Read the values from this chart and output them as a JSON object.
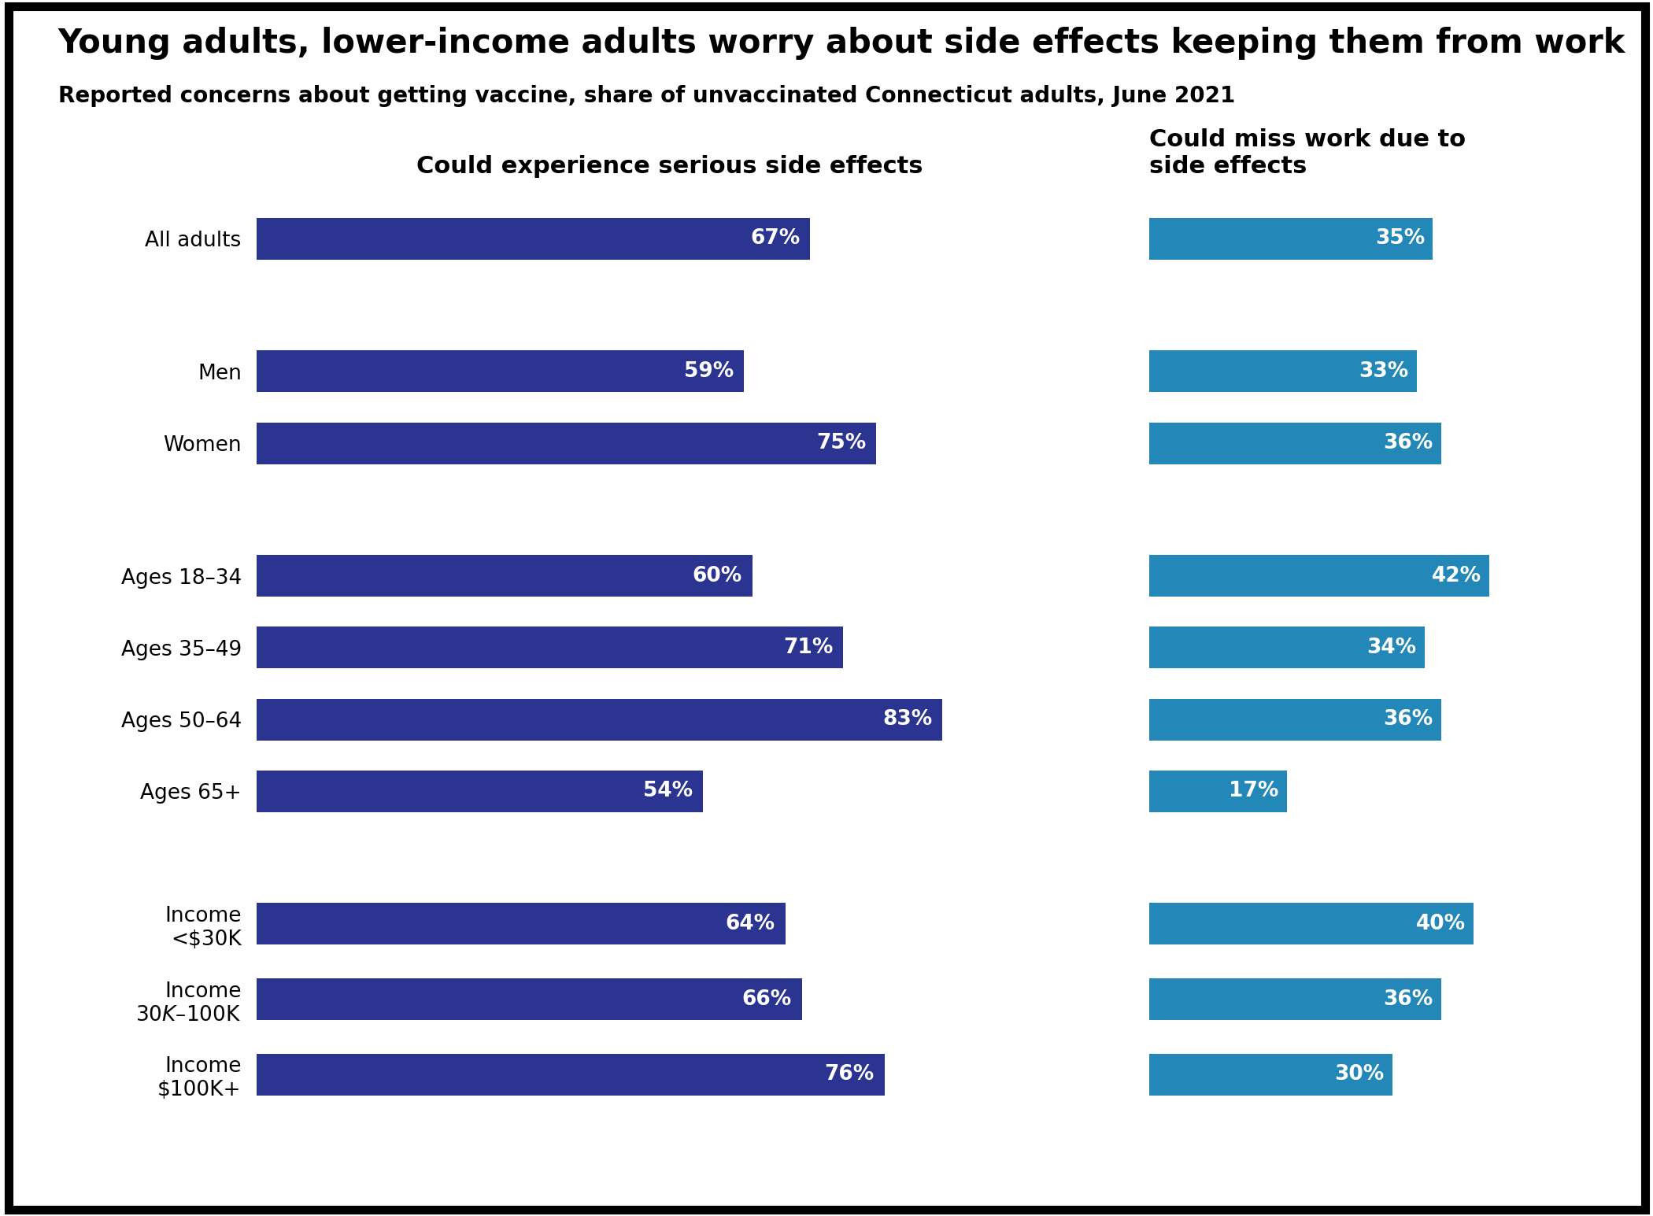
{
  "title": "Young adults, lower-income adults worry about side effects keeping them from work",
  "subtitle": "Reported concerns about getting vaccine, share of unvaccinated Connecticut adults, June 2021",
  "col1_title": "Could experience serious side effects",
  "col2_title": "Could miss work due to\nside effects",
  "categories": [
    "All adults",
    "Men",
    "Women",
    "Ages 18–34",
    "Ages 35–49",
    "Ages 50–64",
    "Ages 65+",
    "Income\n<$30K",
    "Income\n$30K–$100K",
    "Income\n$100K+"
  ],
  "values_left": [
    67,
    59,
    75,
    60,
    71,
    83,
    54,
    64,
    66,
    76
  ],
  "values_right": [
    35,
    33,
    36,
    42,
    34,
    36,
    17,
    40,
    36,
    30
  ],
  "bar_color_left": "#2b3491",
  "bar_color_right": "#2388b8",
  "background_color": "#ffffff",
  "border_color": "#000000",
  "title_color": "#000000",
  "subtitle_color": "#000000",
  "label_color": "#000000",
  "value_color": "#ffffff",
  "datahaven_color": "#ffffff",
  "datahaven_bg": "#000000",
  "title_fontsize": 30,
  "subtitle_fontsize": 20,
  "col_title_fontsize": 22,
  "category_fontsize": 19,
  "value_fontsize": 19
}
